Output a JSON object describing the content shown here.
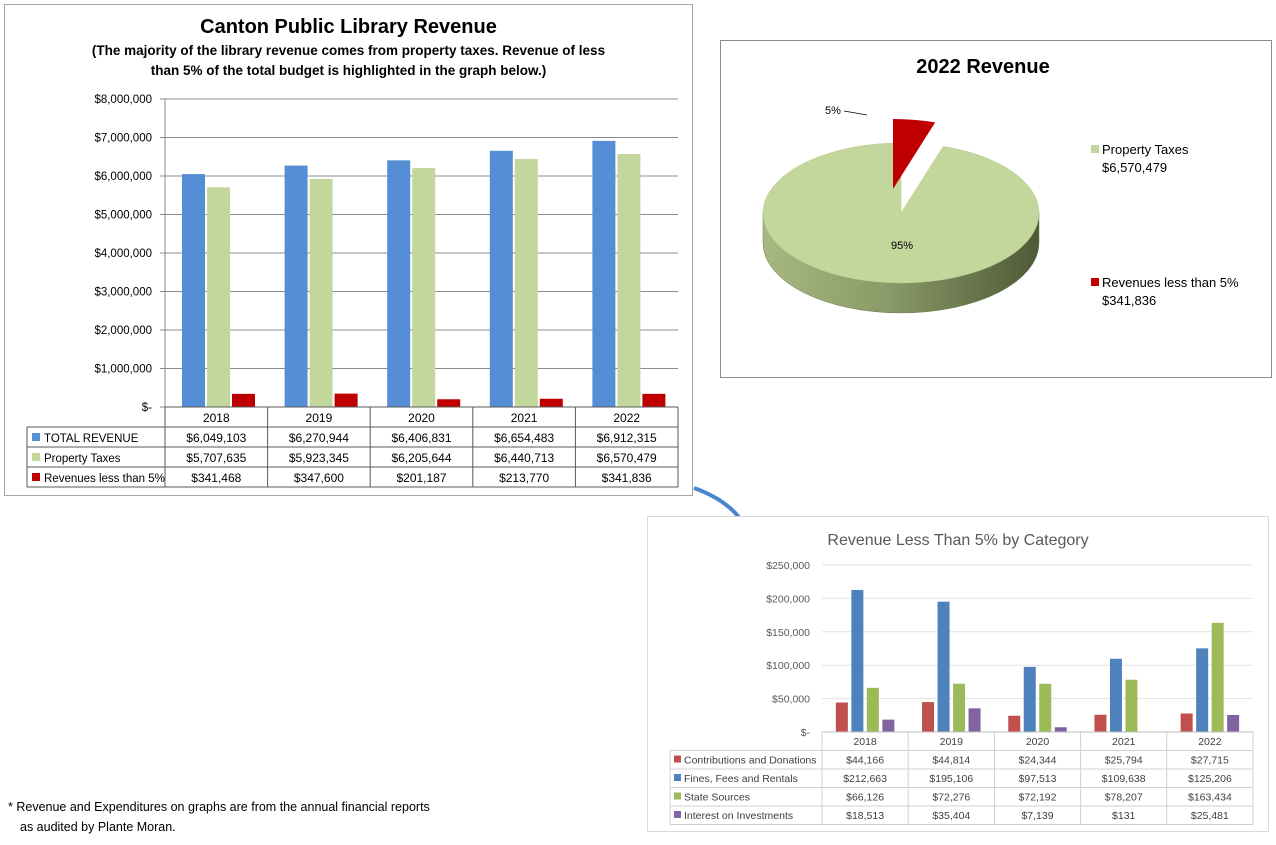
{
  "chart_data": [
    {
      "type": "bar",
      "title": "Canton Public Library Revenue",
      "subtitle_lines": [
        "(The majority of the library revenue comes from property taxes. Revenue of less",
        "than 5% of the total budget is highlighted in the graph below.)"
      ],
      "categories": [
        "2018",
        "2019",
        "2020",
        "2021",
        "2022"
      ],
      "y_ticks": [
        "$8,000,000",
        "$7,000,000",
        "$6,000,000",
        "$5,000,000",
        "$4,000,000",
        "$3,000,000",
        "$2,000,000",
        "$1,000,000",
        "$-"
      ],
      "ylim": [
        0,
        8000000
      ],
      "grid": true,
      "legend": "data-table",
      "series": [
        {
          "name": "TOTAL REVENUE",
          "color": "#558ed5",
          "values": [
            6049103,
            6270944,
            6406831,
            6654483,
            6912315
          ],
          "labels": [
            "$6,049,103",
            "$6,270,944",
            "$6,406,831",
            "$6,654,483",
            "$6,912,315"
          ]
        },
        {
          "name": "Property Taxes",
          "color": "#c3d69b",
          "values": [
            5707635,
            5923345,
            6205644,
            6440713,
            6570479
          ],
          "labels": [
            "$5,707,635",
            "$5,923,345",
            "$6,205,644",
            "$6,440,713",
            "$6,570,479"
          ]
        },
        {
          "name": "Revenues less than 5%",
          "color": "#c00000",
          "values": [
            341468,
            347600,
            201187,
            213770,
            341836
          ],
          "labels": [
            "$341,468",
            "$347,600",
            "$201,187",
            "$213,770",
            "$341,836"
          ]
        }
      ]
    },
    {
      "type": "pie",
      "title": "2022 Revenue",
      "legend": "right",
      "slices": [
        {
          "name": "Property Taxes",
          "value": 6570479,
          "value_label": "$6,570,479",
          "percent_label": "95%",
          "color": "#c3d69b"
        },
        {
          "name": "Revenues less than 5%",
          "value": 341836,
          "value_label": "$341,836",
          "percent_label": "5%",
          "color": "#c00000"
        }
      ]
    },
    {
      "type": "bar",
      "title": "Revenue Less Than 5% by Category",
      "categories": [
        "2018",
        "2019",
        "2020",
        "2021",
        "2022"
      ],
      "y_ticks": [
        "$250,000",
        "$200,000",
        "$150,000",
        "$100,000",
        "$50,000",
        "$-"
      ],
      "ylim": [
        0,
        250000
      ],
      "grid": true,
      "legend": "data-table",
      "series": [
        {
          "name": "Contributions and Donations",
          "color": "#c0504d",
          "values": [
            44166,
            44814,
            24344,
            25794,
            27715
          ],
          "labels": [
            "$44,166",
            "$44,814",
            "$24,344",
            "$25,794",
            "$27,715"
          ]
        },
        {
          "name": "Fines, Fees and Rentals",
          "color": "#4f81bd",
          "values": [
            212663,
            195106,
            97513,
            109638,
            125206
          ],
          "labels": [
            "$212,663",
            "$195,106",
            "$97,513",
            "$109,638",
            "$125,206"
          ]
        },
        {
          "name": "State Sources",
          "color": "#9bbb59",
          "values": [
            66126,
            72276,
            72192,
            78207,
            163434
          ],
          "labels": [
            "$66,126",
            "$72,276",
            "$72,192",
            "$78,207",
            "$163,434"
          ]
        },
        {
          "name": "Interest on Investments",
          "color": "#8064a2",
          "values": [
            18513,
            35404,
            7139,
            131,
            25481
          ],
          "labels": [
            "$18,513",
            "$35,404",
            "$7,139",
            "$131",
            "$25,481"
          ]
        }
      ]
    }
  ],
  "footnote": [
    "* Revenue and Expenditures on graphs are from the annual financial reports",
    "as audited by Plante Moran."
  ],
  "icons": {
    "arrow": "curved-arrow-icon"
  }
}
